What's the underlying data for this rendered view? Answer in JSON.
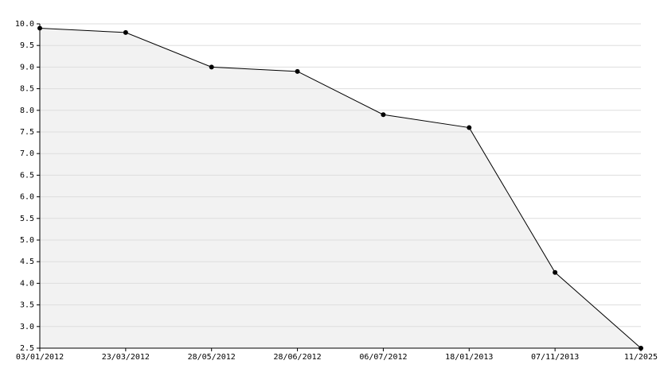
{
  "chart_data": {
    "type": "line",
    "categories": [
      "03/01/2012",
      "23/03/2012",
      "28/05/2012",
      "28/06/2012",
      "06/07/2012",
      "18/01/2013",
      "07/11/2013",
      "11/2025"
    ],
    "values": [
      9.9,
      9.8,
      9.0,
      8.9,
      7.9,
      7.6,
      4.25,
      2.5
    ],
    "color": "#000000",
    "fill_color": "#f2f2f2",
    "grid_color": "#dddddd",
    "ylim": [
      2.5,
      10
    ],
    "yticks": [
      {
        "value": 2.5,
        "label": "2.5"
      },
      {
        "value": 3,
        "label": "3.0"
      },
      3.5,
      {
        "value": 4,
        "label": "4.0"
      },
      4.5,
      {
        "value": 5,
        "label": "5.0"
      },
      5.5,
      {
        "value": 6,
        "label": "6.0"
      },
      6.5,
      {
        "value": 7,
        "label": "7.0"
      },
      7.5,
      {
        "value": 8,
        "label": "8.0"
      },
      8.5,
      {
        "value": 9,
        "label": "9.0"
      },
      9.5,
      {
        "value": 10,
        "label": "10.0"
      }
    ],
    "grid": true,
    "filled": true
  }
}
